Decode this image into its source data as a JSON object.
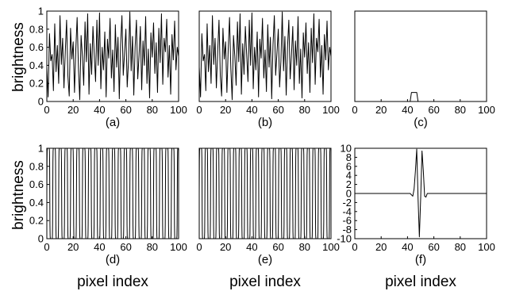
{
  "figure": {
    "ylabel": "brightness",
    "xlabel": "pixel index"
  },
  "chart_data": [
    {
      "id": "a",
      "type": "line",
      "panel_label": "(a)",
      "xlim": [
        0,
        100
      ],
      "ylim": [
        0,
        1
      ],
      "x_ticks": [
        0,
        20,
        40,
        60,
        80,
        100
      ],
      "y_ticks": [
        0,
        0.2,
        0.4,
        0.6,
        0.8,
        1
      ],
      "y_tick_labels": [
        "0",
        "0.2",
        "0.4",
        "0.6",
        "0.8",
        "1"
      ],
      "ylabel": "brightness",
      "xlabel": "",
      "x": [
        0,
        1,
        2,
        3,
        4,
        5,
        6,
        7,
        8,
        9,
        10,
        11,
        12,
        13,
        14,
        15,
        16,
        17,
        18,
        19,
        20,
        21,
        22,
        23,
        24,
        25,
        26,
        27,
        28,
        29,
        30,
        31,
        32,
        33,
        34,
        35,
        36,
        37,
        38,
        39,
        40,
        41,
        42,
        43,
        44,
        45,
        46,
        47,
        48,
        49,
        50,
        51,
        52,
        53,
        54,
        55,
        56,
        57,
        58,
        59,
        60,
        61,
        62,
        63,
        64,
        65,
        66,
        67,
        68,
        69,
        70,
        71,
        72,
        73,
        74,
        75,
        76,
        77,
        78,
        79,
        80,
        81,
        82,
        83,
        84,
        85,
        86,
        87,
        88,
        89,
        90,
        91,
        92,
        93,
        94,
        95,
        96,
        97,
        98,
        99,
        100
      ],
      "values": [
        0.38,
        0.05,
        0.75,
        0.45,
        0.52,
        0.12,
        0.86,
        0.33,
        0.62,
        0.2,
        0.95,
        0.41,
        0.7,
        0.15,
        0.55,
        0.9,
        0.28,
        0.06,
        0.81,
        0.47,
        0.66,
        0.1,
        0.58,
        0.93,
        0.36,
        0.02,
        0.73,
        0.5,
        0.18,
        0.88,
        0.44,
        0.97,
        0.08,
        0.64,
        0.3,
        0.83,
        0.52,
        0.22,
        0.9,
        0.4,
        0.98,
        0.14,
        0.6,
        0.35,
        0.77,
        0.05,
        0.69,
        0.48,
        0.92,
        0.26,
        0.57,
        0.11,
        0.85,
        0.38,
        0.71,
        0.03,
        0.63,
        0.95,
        0.29,
        0.54,
        0.8,
        0.16,
        0.45,
        0.99,
        0.34,
        0.72,
        0.07,
        0.6,
        0.9,
        0.25,
        0.51,
        0.83,
        0.13,
        0.67,
        0.4,
        0.94,
        0.2,
        0.58,
        0.04,
        0.76,
        0.49,
        0.87,
        0.31,
        0.65,
        0.1,
        0.81,
        0.43,
        0.97,
        0.19,
        0.7,
        0.55,
        0.91,
        0.27,
        0.62,
        0.08,
        0.74,
        0.46,
        0.89,
        0.35,
        0.6,
        0.5
      ]
    },
    {
      "id": "b",
      "type": "line",
      "panel_label": "(b)",
      "xlim": [
        0,
        100
      ],
      "ylim": [
        0,
        1
      ],
      "x_ticks": [
        0,
        20,
        40,
        60,
        80,
        100
      ],
      "y_ticks": [],
      "y_tick_labels": [],
      "ylabel": "",
      "xlabel": "",
      "x": [
        0,
        1,
        2,
        3,
        4,
        5,
        6,
        7,
        8,
        9,
        10,
        11,
        12,
        13,
        14,
        15,
        16,
        17,
        18,
        19,
        20,
        21,
        22,
        23,
        24,
        25,
        26,
        27,
        28,
        29,
        30,
        31,
        32,
        33,
        34,
        35,
        36,
        37,
        38,
        39,
        40,
        41,
        42,
        43,
        44,
        45,
        46,
        47,
        48,
        49,
        50,
        51,
        52,
        53,
        54,
        55,
        56,
        57,
        58,
        59,
        60,
        61,
        62,
        63,
        64,
        65,
        66,
        67,
        68,
        69,
        70,
        71,
        72,
        73,
        74,
        75,
        76,
        77,
        78,
        79,
        80,
        81,
        82,
        83,
        84,
        85,
        86,
        87,
        88,
        89,
        90,
        91,
        92,
        93,
        94,
        95,
        96,
        97,
        98,
        99,
        100
      ],
      "values": [
        0.38,
        0.05,
        0.75,
        0.45,
        0.52,
        0.12,
        0.86,
        0.33,
        0.62,
        0.2,
        0.95,
        0.41,
        0.7,
        0.15,
        0.55,
        0.9,
        0.28,
        0.06,
        0.81,
        0.47,
        0.66,
        0.1,
        0.58,
        0.93,
        0.36,
        0.02,
        0.73,
        0.5,
        0.18,
        0.88,
        0.44,
        0.97,
        0.08,
        0.64,
        0.3,
        0.83,
        0.52,
        0.22,
        0.9,
        0.4,
        0.98,
        0.14,
        0.6,
        0.35,
        0.77,
        0.05,
        0.69,
        0.48,
        0.92,
        0.26,
        0.57,
        0.11,
        0.85,
        0.38,
        0.71,
        0.03,
        0.63,
        0.95,
        0.29,
        0.54,
        0.8,
        0.16,
        0.45,
        0.99,
        0.34,
        0.72,
        0.07,
        0.6,
        0.9,
        0.25,
        0.51,
        0.83,
        0.13,
        0.67,
        0.4,
        0.94,
        0.2,
        0.58,
        0.04,
        0.76,
        0.49,
        0.87,
        0.31,
        0.65,
        0.1,
        0.81,
        0.43,
        0.97,
        0.19,
        0.7,
        0.55,
        0.91,
        0.27,
        0.62,
        0.08,
        0.74,
        0.46,
        0.89,
        0.35,
        0.6,
        0.5
      ]
    },
    {
      "id": "c",
      "type": "line",
      "panel_label": "(c)",
      "xlim": [
        0,
        100
      ],
      "ylim": [
        0,
        1
      ],
      "x_ticks": [
        0,
        20,
        40,
        60,
        80,
        100
      ],
      "y_ticks": [],
      "y_tick_labels": [],
      "ylabel": "",
      "xlabel": "",
      "x": [
        0,
        42,
        43,
        47,
        48,
        100
      ],
      "values": [
        0.0,
        0.0,
        0.1,
        0.1,
        0.0,
        0.0
      ]
    },
    {
      "id": "d",
      "type": "line",
      "panel_label": "(d)",
      "xlim": [
        0,
        100
      ],
      "ylim": [
        0,
        1
      ],
      "x_ticks": [
        0,
        20,
        40,
        60,
        80,
        100
      ],
      "y_ticks": [
        0,
        0.2,
        0.4,
        0.6,
        0.8,
        1
      ],
      "y_tick_labels": [
        "0",
        "0.2",
        "0.4",
        "0.6",
        "0.8",
        "1"
      ],
      "ylabel": "brightness",
      "xlabel": "pixel index",
      "function": "square-ish oscillation, period 4.5 pixels",
      "period": 4.5
    },
    {
      "id": "e",
      "type": "line",
      "panel_label": "(e)",
      "xlim": [
        0,
        100
      ],
      "ylim": [
        0,
        1
      ],
      "x_ticks": [
        0,
        20,
        40,
        60,
        80,
        100
      ],
      "y_ticks": [],
      "y_tick_labels": [],
      "ylabel": "",
      "xlabel": "pixel index",
      "function": "square-ish oscillation, period 4.3 pixels",
      "period": 4.3
    },
    {
      "id": "f",
      "type": "line",
      "panel_label": "(f)",
      "xlim": [
        0,
        100
      ],
      "ylim": [
        -10,
        10
      ],
      "x_ticks": [
        0,
        20,
        40,
        60,
        80,
        100
      ],
      "y_ticks": [
        -10,
        -8,
        -6,
        -4,
        -2,
        0,
        2,
        4,
        6,
        8,
        10
      ],
      "y_tick_labels": [
        "-10",
        "-8",
        "-6",
        "-4",
        "-2",
        "0",
        "2",
        "4",
        "6",
        "8",
        "10"
      ],
      "ylabel": "",
      "xlabel": "pixel index",
      "x": [
        0,
        42,
        44,
        45,
        46,
        47,
        48,
        49,
        50,
        51,
        52,
        53,
        54,
        55,
        56,
        100
      ],
      "values": [
        0,
        0,
        -0.6,
        1.0,
        5.0,
        9.8,
        -1.0,
        -9.6,
        -1.0,
        9.4,
        5.0,
        -0.6,
        -0.8,
        0,
        0,
        0
      ]
    }
  ]
}
